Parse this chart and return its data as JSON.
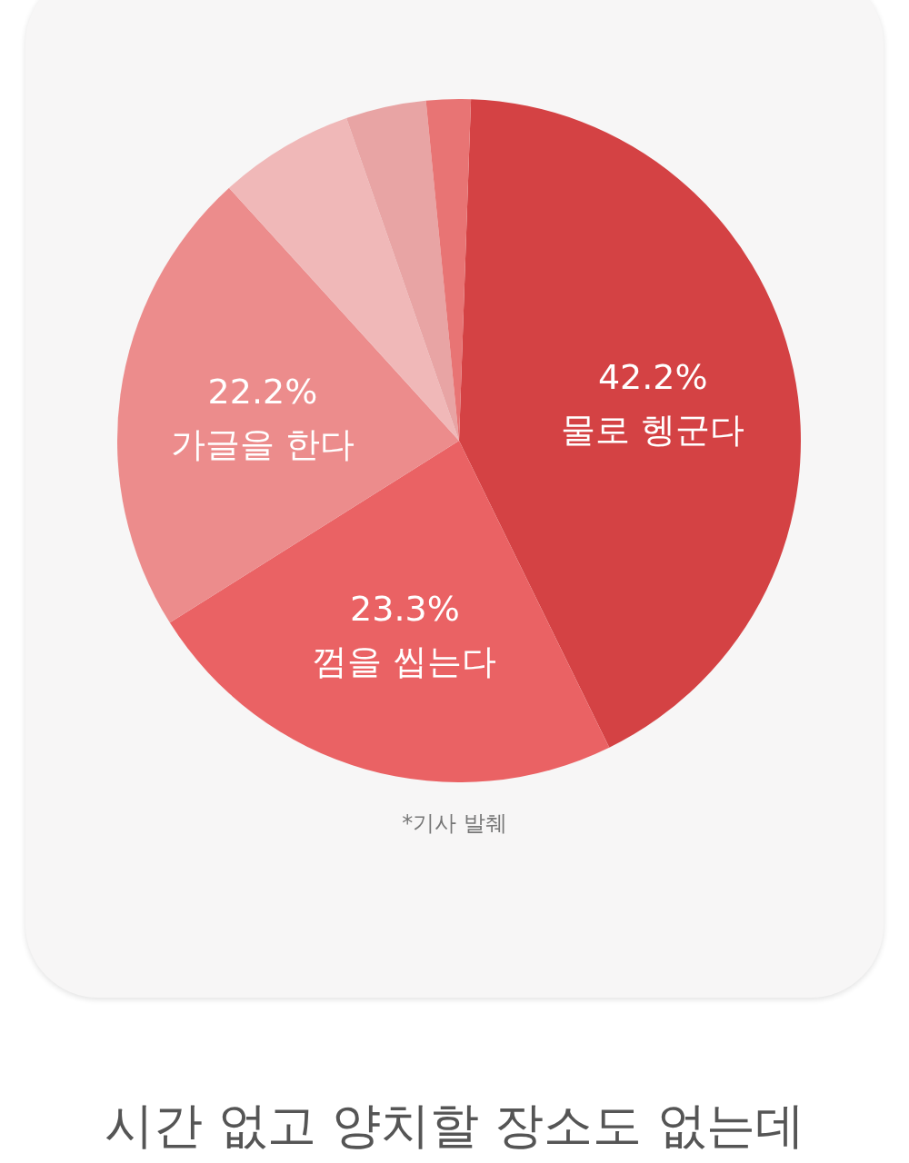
{
  "chart_data": {
    "type": "pie",
    "categories": [
      "물로 헹군다",
      "껌을 씹는다",
      "가글을 한다",
      null,
      null,
      null
    ],
    "values": [
      42.2,
      23.3,
      22.2,
      6.4,
      3.8,
      2.1
    ],
    "value_labels": [
      "42.2%",
      "23.3%",
      "22.2%",
      null,
      null,
      null
    ],
    "colors": [
      "#d44244",
      "#ea6264",
      "#ec8c8c",
      "#f0b8b8",
      "#e8a4a4",
      "#e87474"
    ],
    "annotations": [
      "*기사 발췌",
      "시간 없고 양치할 장소도 없는데"
    ],
    "legend": false
  }
}
